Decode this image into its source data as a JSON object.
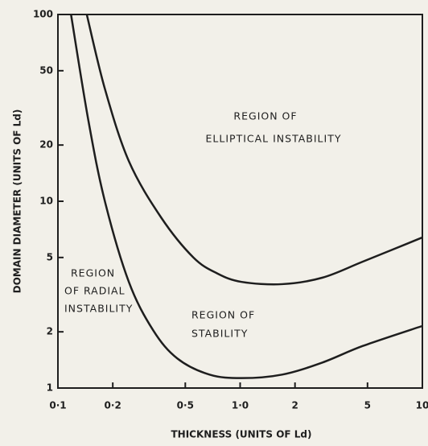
{
  "chart_data": {
    "type": "line",
    "xlabel": "THICKNESS (UNITS OF Ld)",
    "ylabel": "DOMAIN DIAMETER (UNITS OF Ld)",
    "xscale": "log",
    "yscale": "log",
    "xlim": [
      0.1,
      10
    ],
    "ylim": [
      1,
      100
    ],
    "xticks": [
      {
        "value": 0.1,
        "label": "0·1"
      },
      {
        "value": 0.2,
        "label": "0·2"
      },
      {
        "value": 0.5,
        "label": "0·5"
      },
      {
        "value": 1,
        "label": "1·0"
      },
      2,
      5,
      10
    ],
    "yticks": [
      1,
      2,
      5,
      10,
      20,
      50,
      100
    ],
    "grid": false,
    "series": [
      {
        "color": "#1e1e1e",
        "x": [
          0.144,
          0.181,
          0.245,
          0.368,
          0.554,
          0.752,
          1.02,
          1.7,
          2.83,
          4.71,
          10
        ],
        "values": [
          100,
          40,
          16.4,
          8.2,
          5.0,
          4.1,
          3.7,
          3.6,
          3.9,
          4.75,
          6.4
        ]
      },
      {
        "color": "#1e1e1e",
        "x": [
          0.118,
          0.147,
          0.181,
          0.245,
          0.333,
          0.452,
          0.679,
          1.02,
          1.7,
          2.83,
          4.71,
          10
        ],
        "values": [
          100,
          27,
          10,
          3.7,
          2.04,
          1.44,
          1.18,
          1.13,
          1.18,
          1.37,
          1.68,
          2.15
        ]
      }
    ],
    "annotations": [
      "REGION OF",
      "ELLIPTICAL INSTABILITY",
      "REGION",
      "OF RADIAL",
      "INSTABILITY",
      "REGION OF",
      "STABILITY"
    ]
  }
}
